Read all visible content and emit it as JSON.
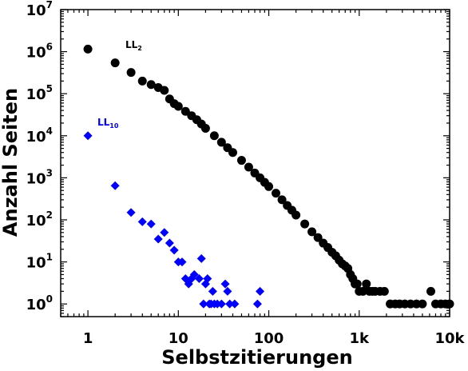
{
  "chart_data": {
    "type": "scatter",
    "x_scale": "log",
    "y_scale": "log",
    "xlim": [
      0.5,
      10000
    ],
    "ylim": [
      0.5,
      10000000
    ],
    "xlabel": "Selbstzitierungen",
    "ylabel": "Anzahl Seiten",
    "x_ticks": [
      {
        "value": 1,
        "label": "1"
      },
      {
        "value": 10,
        "label": "10"
      },
      {
        "value": 100,
        "label": "100"
      },
      {
        "value": 1000,
        "label": "1k"
      },
      {
        "value": 10000,
        "label": "10k"
      }
    ],
    "y_ticks": [
      {
        "value": 1,
        "base": "10",
        "exp": "0"
      },
      {
        "value": 10,
        "base": "10",
        "exp": "1"
      },
      {
        "value": 100,
        "base": "10",
        "exp": "2"
      },
      {
        "value": 1000,
        "base": "10",
        "exp": "3"
      },
      {
        "value": 10000,
        "base": "10",
        "exp": "4"
      },
      {
        "value": 100000,
        "base": "10",
        "exp": "5"
      },
      {
        "value": 1000000,
        "base": "10",
        "exp": "6"
      },
      {
        "value": 10000000,
        "base": "10",
        "exp": "7"
      }
    ],
    "series": [
      {
        "label_main": "LL",
        "label_sub": "2",
        "color": "#000000",
        "marker": "circle",
        "points": [
          [
            1,
            1150000
          ],
          [
            2,
            540000
          ],
          [
            3,
            320000
          ],
          [
            4,
            200000
          ],
          [
            5,
            165000
          ],
          [
            6,
            140000
          ],
          [
            7,
            120000
          ],
          [
            8,
            75000
          ],
          [
            9,
            58000
          ],
          [
            10,
            50000
          ],
          [
            12,
            38000
          ],
          [
            14,
            30000
          ],
          [
            16,
            24000
          ],
          [
            18,
            19000
          ],
          [
            20,
            15000
          ],
          [
            25,
            10000
          ],
          [
            30,
            7000
          ],
          [
            35,
            5200
          ],
          [
            40,
            4000
          ],
          [
            50,
            2600
          ],
          [
            60,
            1800
          ],
          [
            70,
            1300
          ],
          [
            80,
            1000
          ],
          [
            90,
            780
          ],
          [
            100,
            620
          ],
          [
            120,
            430
          ],
          [
            140,
            300
          ],
          [
            160,
            220
          ],
          [
            180,
            170
          ],
          [
            200,
            130
          ],
          [
            250,
            80
          ],
          [
            300,
            52
          ],
          [
            350,
            38
          ],
          [
            400,
            28
          ],
          [
            450,
            22
          ],
          [
            500,
            17
          ],
          [
            550,
            14
          ],
          [
            600,
            11
          ],
          [
            650,
            9
          ],
          [
            700,
            8
          ],
          [
            750,
            7
          ],
          [
            800,
            5
          ],
          [
            850,
            4
          ],
          [
            900,
            3
          ],
          [
            950,
            3
          ],
          [
            1000,
            2
          ],
          [
            1100,
            2
          ],
          [
            1200,
            3
          ],
          [
            1300,
            2
          ],
          [
            1400,
            2
          ],
          [
            1500,
            2
          ],
          [
            1700,
            2
          ],
          [
            1900,
            2
          ],
          [
            2200,
            1
          ],
          [
            2500,
            1
          ],
          [
            2800,
            1
          ],
          [
            3200,
            1
          ],
          [
            3700,
            1
          ],
          [
            4300,
            1
          ],
          [
            5000,
            1
          ],
          [
            6200,
            2
          ],
          [
            7000,
            1
          ],
          [
            8000,
            1
          ],
          [
            9000,
            1
          ],
          [
            10000,
            1
          ]
        ]
      },
      {
        "label_main": "LL",
        "label_sub": "10",
        "color": "#0000ff",
        "marker": "diamond",
        "points": [
          [
            1,
            10000
          ],
          [
            2,
            650
          ],
          [
            3,
            150
          ],
          [
            4,
            90
          ],
          [
            5,
            80
          ],
          [
            6,
            35
          ],
          [
            7,
            50
          ],
          [
            8,
            28
          ],
          [
            9,
            19
          ],
          [
            10,
            10
          ],
          [
            11,
            10
          ],
          [
            12,
            4
          ],
          [
            13,
            3
          ],
          [
            14,
            4
          ],
          [
            15,
            5
          ],
          [
            17,
            4
          ],
          [
            18,
            12
          ],
          [
            19,
            1
          ],
          [
            20,
            3
          ],
          [
            21,
            4
          ],
          [
            22,
            1
          ],
          [
            23,
            1
          ],
          [
            24,
            2
          ],
          [
            25,
            1
          ],
          [
            27,
            1
          ],
          [
            30,
            1
          ],
          [
            33,
            3
          ],
          [
            35,
            2
          ],
          [
            37,
            1
          ],
          [
            42,
            1
          ],
          [
            75,
            1
          ],
          [
            80,
            2
          ]
        ]
      }
    ]
  }
}
